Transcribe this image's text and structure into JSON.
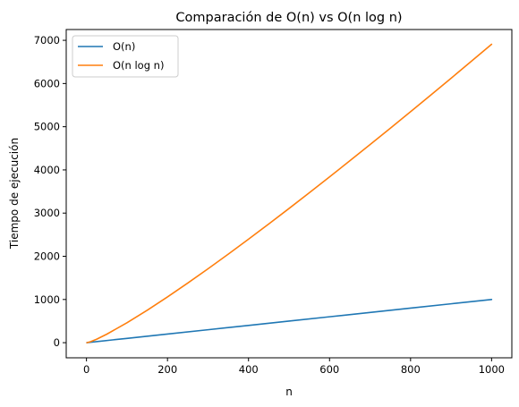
{
  "chart_data": {
    "type": "line",
    "title": "Comparación de O(n) vs O(n log n)",
    "xlabel": "n",
    "ylabel": "Tiempo de ejecución",
    "xlim": [
      -50,
      1050
    ],
    "ylim": [
      -350,
      7250
    ],
    "xticks": [
      0,
      200,
      400,
      600,
      800,
      1000
    ],
    "yticks": [
      0,
      1000,
      2000,
      3000,
      4000,
      5000,
      6000,
      7000
    ],
    "grid": false,
    "legend_position": "upper-left",
    "series": [
      {
        "name": "O(n)",
        "color": "#1f77b4",
        "x": [
          1,
          100,
          200,
          300,
          400,
          500,
          600,
          700,
          800,
          900,
          1000
        ],
        "y": [
          1,
          100,
          200,
          300,
          400,
          500,
          600,
          700,
          800,
          900,
          1000
        ]
      },
      {
        "name": "O(n log n)",
        "color": "#ff7f0e",
        "x": [
          1,
          10,
          25,
          50,
          100,
          150,
          200,
          250,
          300,
          350,
          400,
          450,
          500,
          550,
          600,
          650,
          700,
          750,
          800,
          850,
          900,
          950,
          1000
        ],
        "y": [
          0,
          23,
          80,
          196,
          461,
          752,
          1060,
          1380,
          1711,
          2050,
          2397,
          2749,
          3107,
          3471,
          3838,
          4210,
          4586,
          4965,
          5348,
          5734,
          6122,
          6514,
          6908
        ]
      }
    ]
  }
}
